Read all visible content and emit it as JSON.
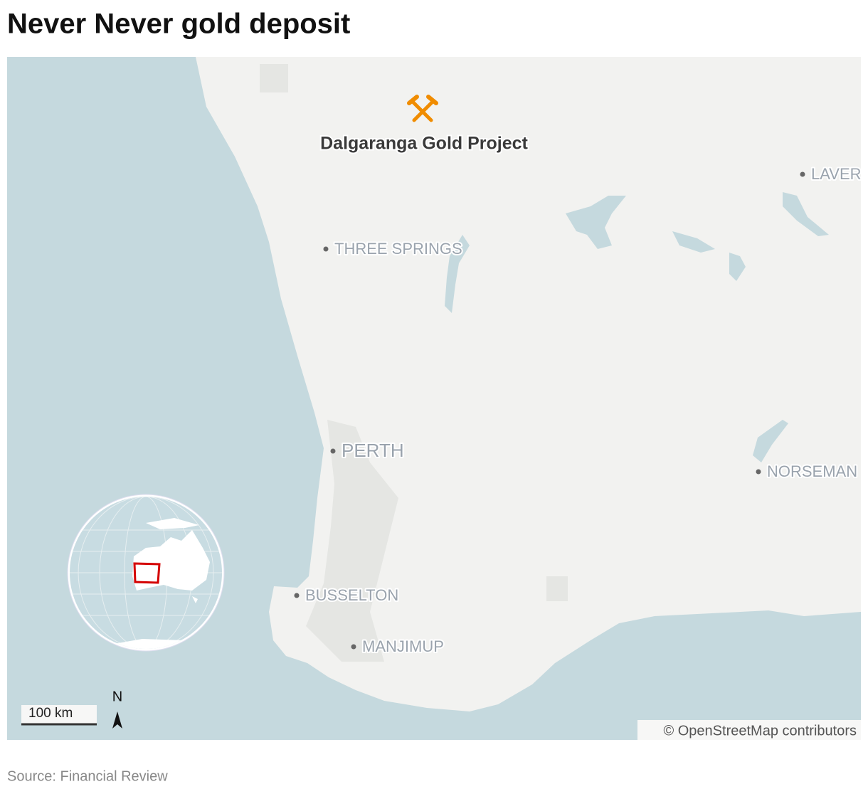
{
  "title": "Never Never gold deposit",
  "map": {
    "marker": {
      "label": "Dalgaranga Gold Project"
    },
    "places": [
      {
        "label": "LAVER"
      },
      {
        "label": "THREE SPRINGS"
      },
      {
        "label": "PERTH"
      },
      {
        "label": "NORSEMAN"
      },
      {
        "label": "BUSSELTON"
      },
      {
        "label": "MANJIMUP"
      }
    ],
    "scale_bar": {
      "label": "100 km"
    },
    "north_arrow": {
      "label": "N"
    },
    "attribution": "© OpenStreetMap contributors"
  },
  "source": "Source: Financial Review"
}
